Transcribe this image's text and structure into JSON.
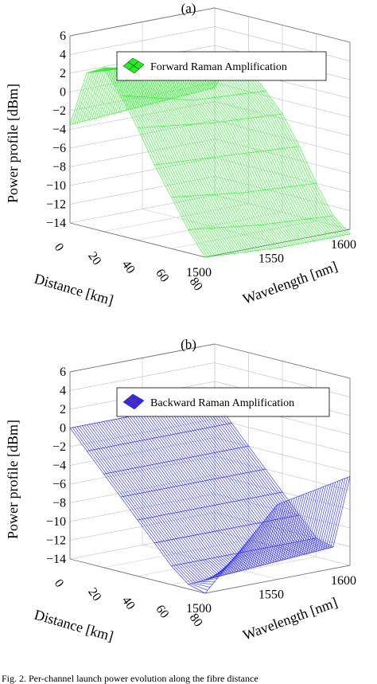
{
  "figure": {
    "caption": "Fig. 2.  Per-channel launch power evolution along the fibre distance"
  },
  "chart_data": [
    {
      "type": "surface3d",
      "panel_label": "(a)",
      "title": "",
      "legend": "Forward Raman Amplification",
      "color": "#22ee22",
      "zlabel": "Power profile [dBm]",
      "xlabel": "Distance [km]",
      "ylabel": "Wavelength [nm]",
      "zlim": [
        -14,
        6
      ],
      "z_ticks": [
        "6",
        "4",
        "2",
        "0",
        "−2",
        "−4",
        "−6",
        "−8",
        "−10",
        "−12",
        "−14"
      ],
      "x_ticks": [
        "0",
        "20",
        "40",
        "60",
        "80"
      ],
      "y_ticks": [
        "1500",
        "1550",
        "1600"
      ],
      "distance_km": [
        0,
        10,
        20,
        30,
        40,
        50,
        60,
        70,
        80
      ],
      "wavelength_nm": [
        1500,
        1550,
        1600
      ],
      "power_dbm": [
        [
          -3.5,
          -3.0,
          -2.5
        ],
        [
          2.5,
          2.0,
          1.0
        ],
        [
          3.5,
          2.0,
          0.5
        ],
        [
          1.0,
          -1.0,
          -1.5
        ],
        [
          -2.0,
          -3.0,
          -3.5
        ],
        [
          -5.5,
          -6.0,
          -6.5
        ],
        [
          -8.5,
          -9.5,
          -10.0
        ],
        [
          -11.5,
          -12.5,
          -13.0
        ],
        [
          -14.0,
          -14.5,
          -14.5
        ]
      ]
    },
    {
      "type": "surface3d",
      "panel_label": "(b)",
      "title": "",
      "legend": "Backward Raman Amplification",
      "color": "#2b2bf0",
      "zlabel": "Power profile [dBm]",
      "xlabel": "Distance [km]",
      "ylabel": "Wavelength [nm]",
      "zlim": [
        -14,
        6
      ],
      "z_ticks": [
        "6",
        "4",
        "2",
        "0",
        "−2",
        "−4",
        "−6",
        "−8",
        "−10",
        "−12",
        "−14"
      ],
      "x_ticks": [
        "0",
        "20",
        "40",
        "60",
        "80"
      ],
      "y_ticks": [
        "1500",
        "1550",
        "1600"
      ],
      "distance_km": [
        0,
        10,
        20,
        30,
        40,
        50,
        60,
        70,
        80
      ],
      "wavelength_nm": [
        1500,
        1550,
        1600
      ],
      "power_dbm": [
        [
          0.0,
          0.0,
          0.0
        ],
        [
          -2.0,
          -2.0,
          -2.0
        ],
        [
          -4.0,
          -4.0,
          -4.0
        ],
        [
          -6.0,
          -6.0,
          -6.0
        ],
        [
          -8.0,
          -8.0,
          -8.0
        ],
        [
          -10.0,
          -10.0,
          -10.0
        ],
        [
          -12.0,
          -12.0,
          -12.0
        ],
        [
          -13.5,
          -13.0,
          -12.5
        ],
        [
          -14.0,
          -6.0,
          -4.5
        ]
      ]
    }
  ]
}
